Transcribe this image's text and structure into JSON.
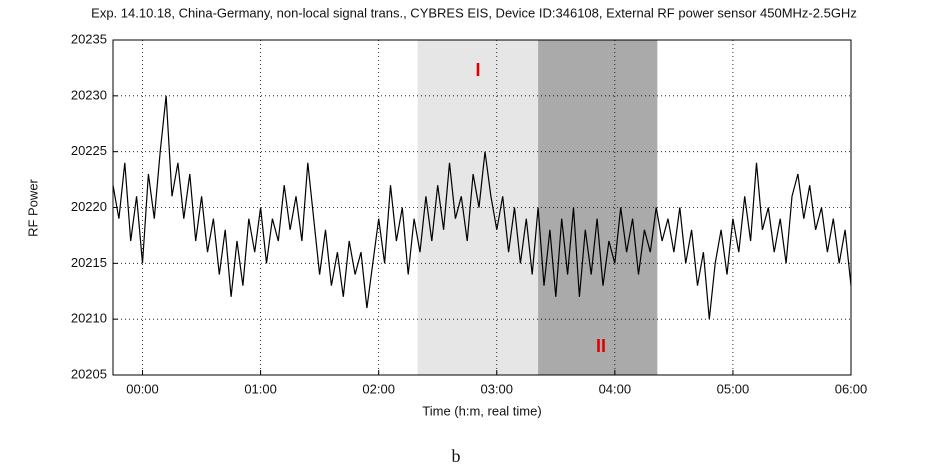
{
  "chart_data": {
    "type": "line",
    "title": "Exp. 14.10.18, China-Germany, non-local signal trans., CYBRES EIS, Device ID:346108, External RF power sensor 450MHz-2.5GHz",
    "xlabel": "Time (h:m, real time)",
    "ylabel": "RF Power",
    "caption": "b",
    "xlim": [
      -0.25,
      6
    ],
    "ylim": [
      20205,
      20235
    ],
    "xticks": [
      {
        "value": 0,
        "label": "00:00"
      },
      {
        "value": 1,
        "label": "01:00"
      },
      {
        "value": 2,
        "label": "02:00"
      },
      {
        "value": 3,
        "label": "03:00"
      },
      {
        "value": 4,
        "label": "04:00"
      },
      {
        "value": 5,
        "label": "05:00"
      },
      {
        "value": 6,
        "label": "06:00"
      }
    ],
    "yticks": [
      20205,
      20210,
      20215,
      20220,
      20225,
      20230,
      20235
    ],
    "grid": true,
    "regions": [
      {
        "label": "I",
        "from": 2.33,
        "to": 3.35,
        "color": "#e6e6e6"
      },
      {
        "label": "II",
        "from": 3.35,
        "to": 4.36,
        "color": "#aaaaaa"
      }
    ],
    "x": [
      -0.25,
      -0.2,
      -0.15,
      -0.1,
      -0.05,
      0,
      0.05,
      0.1,
      0.15,
      0.2,
      0.25,
      0.3,
      0.35,
      0.4,
      0.45,
      0.5,
      0.55,
      0.6,
      0.65,
      0.7,
      0.75,
      0.8,
      0.85,
      0.9,
      0.95,
      1,
      1.05,
      1.1,
      1.15,
      1.2,
      1.25,
      1.3,
      1.35,
      1.4,
      1.45,
      1.5,
      1.55,
      1.6,
      1.65,
      1.7,
      1.75,
      1.8,
      1.85,
      1.9,
      1.95,
      2,
      2.05,
      2.1,
      2.15,
      2.2,
      2.25,
      2.3,
      2.35,
      2.4,
      2.45,
      2.5,
      2.55,
      2.6,
      2.65,
      2.7,
      2.75,
      2.8,
      2.85,
      2.9,
      2.95,
      3,
      3.05,
      3.1,
      3.15,
      3.2,
      3.25,
      3.3,
      3.35,
      3.4,
      3.45,
      3.5,
      3.55,
      3.6,
      3.65,
      3.7,
      3.75,
      3.8,
      3.85,
      3.9,
      3.95,
      4,
      4.05,
      4.1,
      4.15,
      4.2,
      4.25,
      4.3,
      4.35,
      4.4,
      4.45,
      4.5,
      4.55,
      4.6,
      4.65,
      4.7,
      4.75,
      4.8,
      4.85,
      4.9,
      4.95,
      5,
      5.05,
      5.1,
      5.15,
      5.2,
      5.25,
      5.3,
      5.35,
      5.4,
      5.45,
      5.5,
      5.55,
      5.6,
      5.65,
      5.7,
      5.75,
      5.8,
      5.85,
      5.9,
      5.95,
      6
    ],
    "series": [
      {
        "color": "#000000",
        "values": [
          20222,
          20219,
          20224,
          20217,
          20221,
          20215,
          20223,
          20219,
          20225,
          20230,
          20221,
          20224,
          20219,
          20223,
          20217,
          20221,
          20216,
          20219,
          20214,
          20218,
          20212,
          20217,
          20213,
          20219,
          20216,
          20220,
          20215,
          20219,
          20217,
          20222,
          20218,
          20221,
          20217,
          20224,
          20219,
          20214,
          20218,
          20213,
          20216,
          20212,
          20217,
          20214,
          20216,
          20211,
          20215,
          20219,
          20215,
          20222,
          20217,
          20220,
          20214,
          20219,
          20216,
          20221,
          20217,
          20222,
          20218,
          20224,
          20219,
          20221,
          20217,
          20223,
          20220,
          20225,
          20221,
          20218,
          20221,
          20216,
          20220,
          20215,
          20219,
          20214,
          20220,
          20213,
          20218,
          20212,
          20219,
          20214,
          20220,
          20212,
          20218,
          20214,
          20219,
          20213,
          20217,
          20215,
          20220,
          20216,
          20219,
          20214,
          20218,
          20216,
          20220,
          20217,
          20219,
          20216,
          20220,
          20215,
          20218,
          20213,
          20216,
          20210,
          20215,
          20218,
          20214,
          20219,
          20216,
          20221,
          20217,
          20224,
          20218,
          20220,
          20216,
          20219,
          20215,
          20221,
          20223,
          20219,
          20222,
          20218,
          20220,
          20216,
          20219,
          20215,
          20218,
          20213
        ]
      }
    ]
  }
}
